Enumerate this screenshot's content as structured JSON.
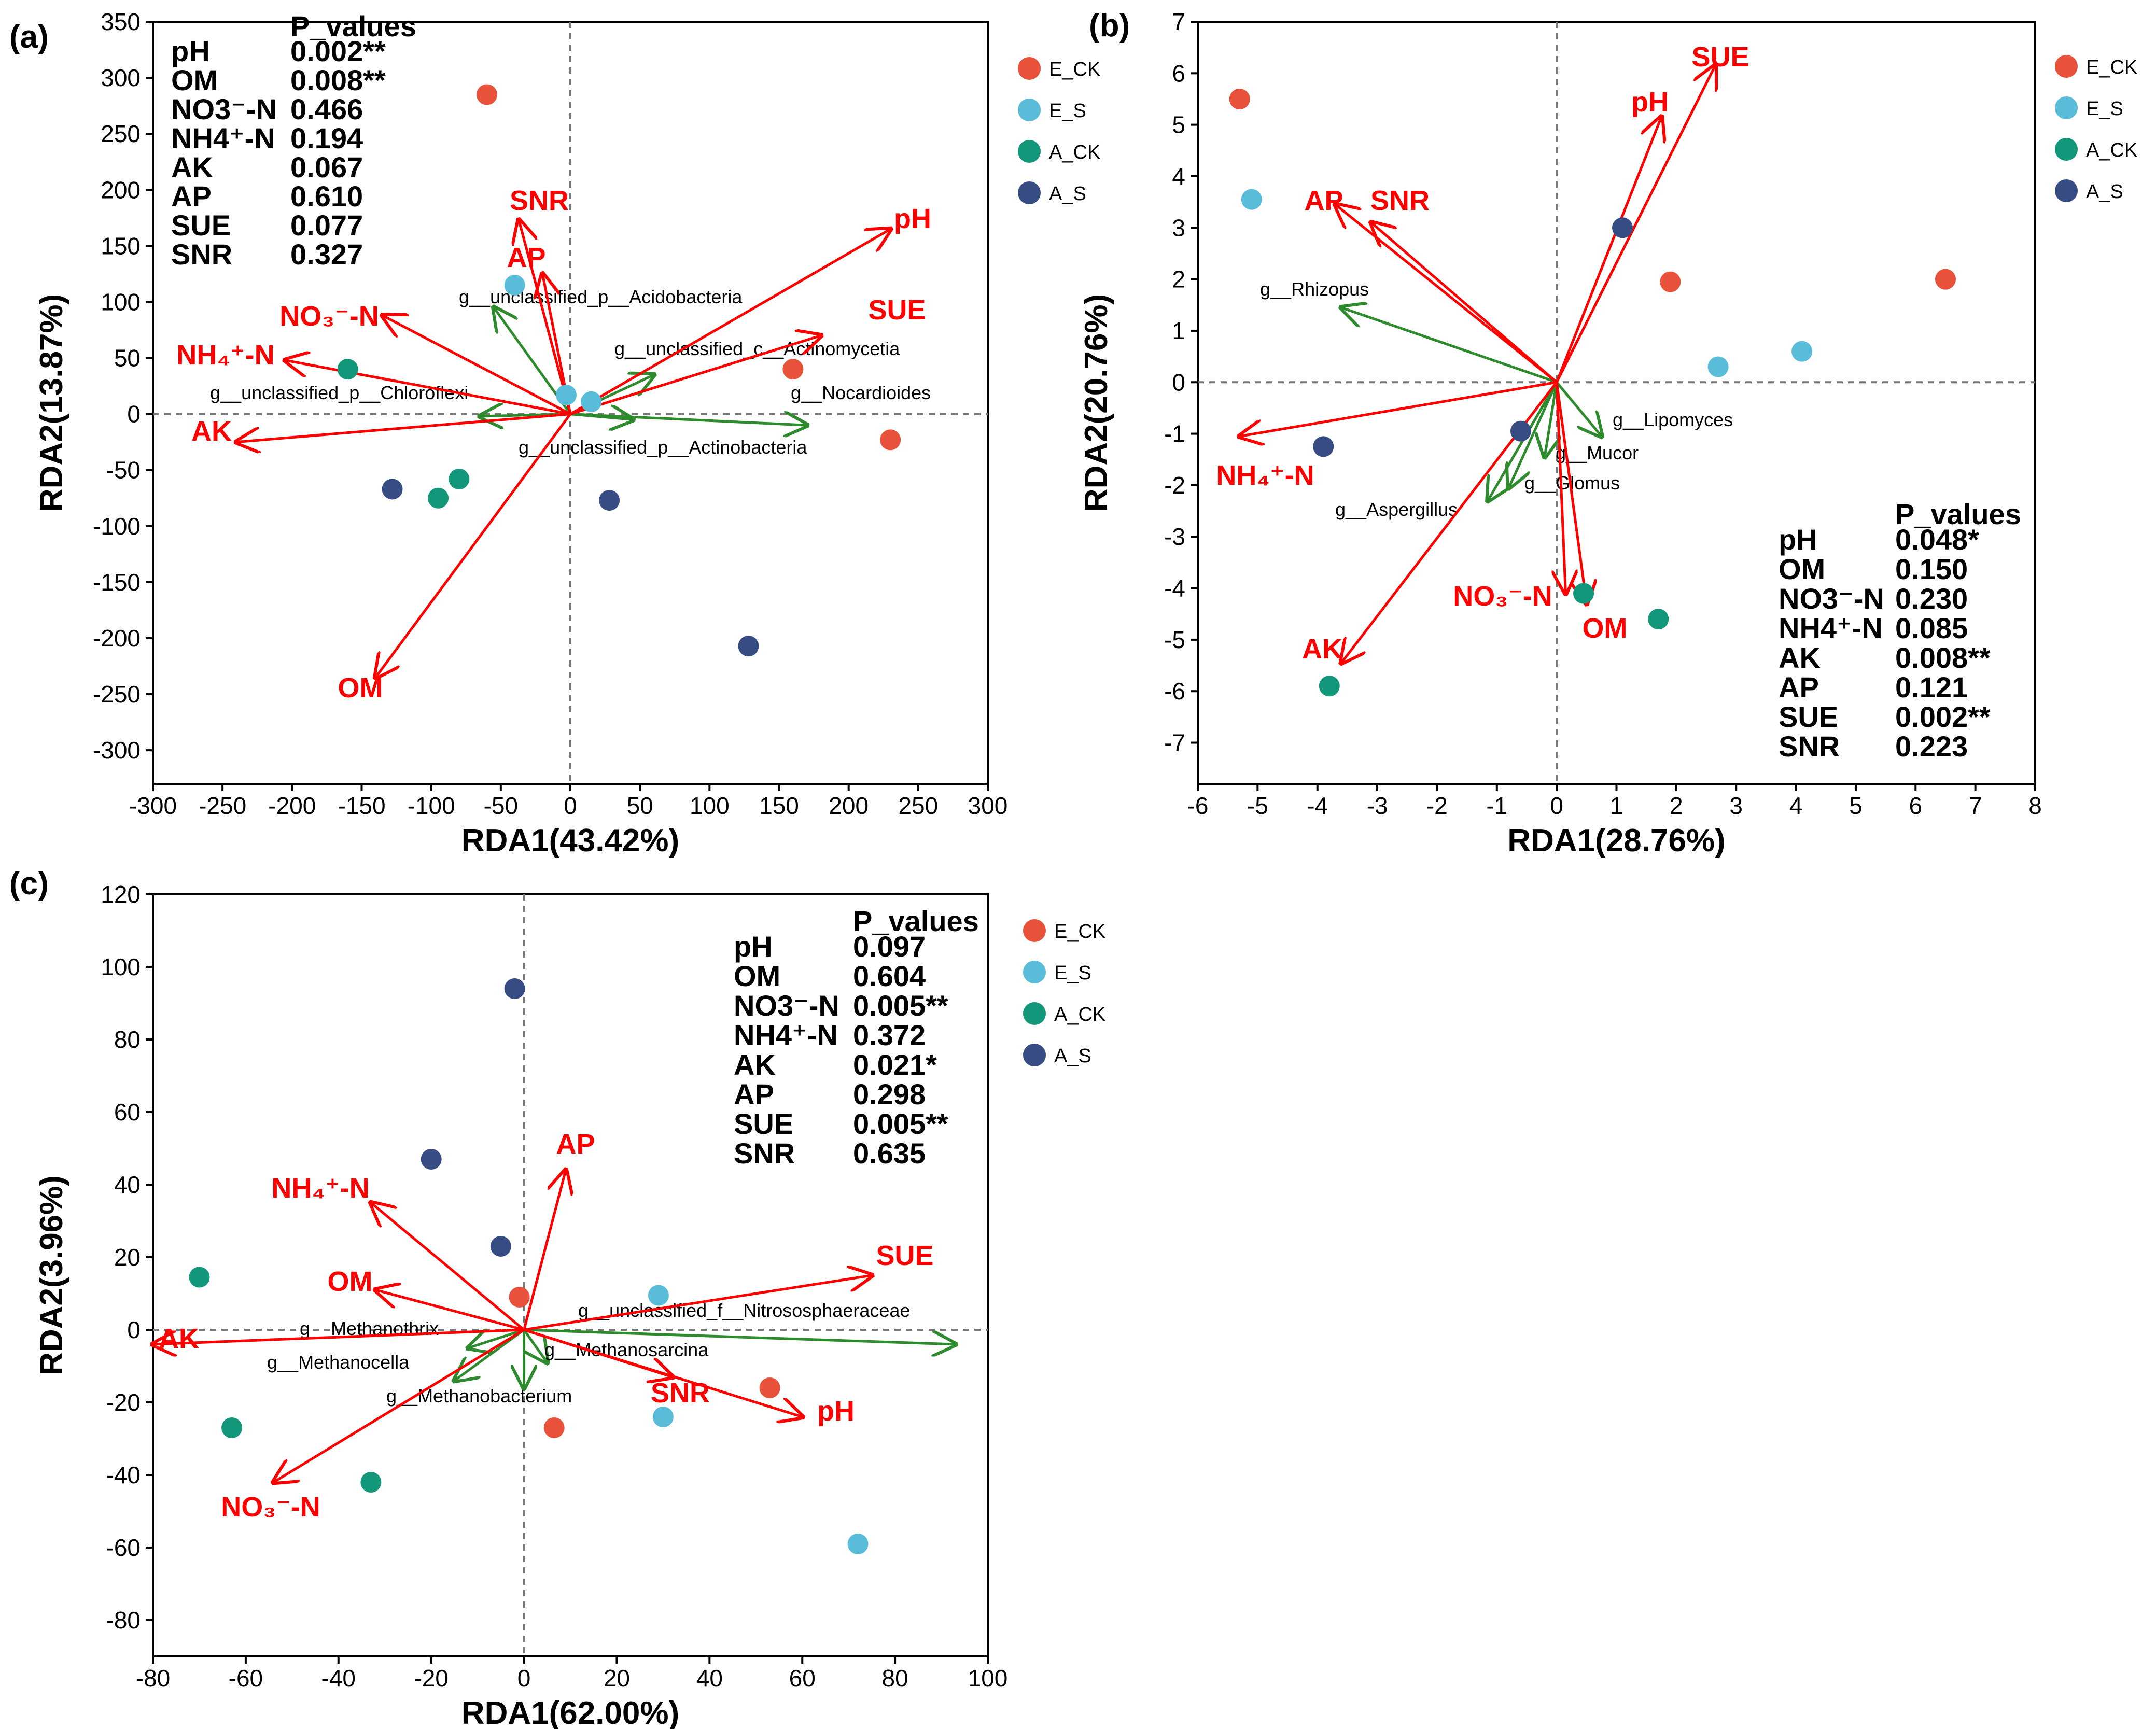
{
  "colors": {
    "E_CK": "#e8523a",
    "E_S": "#59bcd8",
    "A_CK": "#12977a",
    "A_S": "#384c84",
    "env_arrow": "#ff0000",
    "taxa_arrow": "#2d8a2d"
  },
  "chart_data": [
    {
      "id": "a",
      "type": "scatter",
      "panel_label": "(a)",
      "xlabel": "RDA1(43.42%)",
      "ylabel": "RDA2(13.87%)",
      "xlim": [
        -300,
        300
      ],
      "ylim": [
        -330,
        350
      ],
      "xticks": [
        -300,
        -250,
        -200,
        -150,
        -100,
        -50,
        0,
        50,
        100,
        150,
        200,
        250,
        300
      ],
      "yticks": [
        -300,
        -250,
        -200,
        -150,
        -100,
        -50,
        0,
        50,
        100,
        150,
        200,
        250,
        300,
        350
      ],
      "legend": [
        "E_CK",
        "E_S",
        "A_CK",
        "A_S"
      ],
      "legend_position": "right",
      "pvalues_title": "P_values",
      "pvalues_position": "top-left",
      "pvalues": [
        {
          "name": "pH",
          "value": "0.002**"
        },
        {
          "name": "OM",
          "value": "0.008**"
        },
        {
          "name": "NO3⁻-N",
          "value": "0.466"
        },
        {
          "name": "NH4⁺-N",
          "value": "0.194"
        },
        {
          "name": "AK",
          "value": "0.067"
        },
        {
          "name": "AP",
          "value": "0.610"
        },
        {
          "name": "SUE",
          "value": "0.077"
        },
        {
          "name": "SNR",
          "value": "0.327"
        }
      ],
      "points": [
        {
          "group": "E_CK",
          "x": -60,
          "y": 285
        },
        {
          "group": "E_CK",
          "x": 160,
          "y": 40
        },
        {
          "group": "E_CK",
          "x": 230,
          "y": -23
        },
        {
          "group": "E_S",
          "x": -40,
          "y": 115
        },
        {
          "group": "E_S",
          "x": -3,
          "y": 17
        },
        {
          "group": "E_S",
          "x": 15,
          "y": 11
        },
        {
          "group": "A_CK",
          "x": -160,
          "y": 40
        },
        {
          "group": "A_CK",
          "x": -95,
          "y": -75
        },
        {
          "group": "A_CK",
          "x": -80,
          "y": -58
        },
        {
          "group": "A_S",
          "x": -128,
          "y": -67
        },
        {
          "group": "A_S",
          "x": 28,
          "y": -77
        },
        {
          "group": "A_S",
          "x": 128,
          "y": -207
        }
      ],
      "env_arrows": [
        {
          "label": "pH",
          "x": 230,
          "y": 165
        },
        {
          "label": "SUE",
          "x": 180,
          "y": 70
        },
        {
          "label": "SNR",
          "x": -37,
          "y": 173
        },
        {
          "label": "AP",
          "x": -20,
          "y": 125
        },
        {
          "label": "NO₃⁻-N",
          "x": -135,
          "y": 88
        },
        {
          "label": "NH₄⁺-N",
          "x": -205,
          "y": 48
        },
        {
          "label": "AK",
          "x": -240,
          "y": -25
        },
        {
          "label": "OM",
          "x": -140,
          "y": -235
        }
      ],
      "taxa_arrows": [
        {
          "label": "g__unclassified_p__Acidobacteria",
          "x": -55,
          "y": 95
        },
        {
          "label": "g__unclassified_c__Actinomycetia",
          "x": 60,
          "y": 35
        },
        {
          "label": "g__unclassified_p__Chloroflexi",
          "x": -65,
          "y": -2
        },
        {
          "label": "g__Nocardioides",
          "x": 170,
          "y": -10
        },
        {
          "label": "g__unclassified_p__Actinobacteria",
          "x": 45,
          "y": -5
        }
      ]
    },
    {
      "id": "b",
      "type": "scatter",
      "panel_label": "(b)",
      "xlabel": "RDA1(28.76%)",
      "ylabel": "RDA2(20.76%)",
      "xlim": [
        -6,
        8
      ],
      "ylim": [
        -7.8,
        7
      ],
      "xticks": [
        -6,
        -5,
        -4,
        -3,
        -2,
        -1,
        0,
        1,
        2,
        3,
        4,
        5,
        6,
        7,
        8
      ],
      "yticks": [
        -7,
        -6,
        -5,
        -4,
        -3,
        -2,
        -1,
        0,
        1,
        2,
        3,
        4,
        5,
        6,
        7
      ],
      "legend": [
        "E_CK",
        "E_S",
        "A_CK",
        "A_S"
      ],
      "legend_position": "right",
      "pvalues_title": "P_values",
      "pvalues_position": "bottom-right",
      "pvalues": [
        {
          "name": "pH",
          "value": "0.048*"
        },
        {
          "name": "OM",
          "value": "0.150"
        },
        {
          "name": "NO3⁻-N",
          "value": "0.230"
        },
        {
          "name": "NH4⁺-N",
          "value": "0.085"
        },
        {
          "name": "AK",
          "value": "0.008**"
        },
        {
          "name": "AP",
          "value": "0.121"
        },
        {
          "name": "SUE",
          "value": "0.002**"
        },
        {
          "name": "SNR",
          "value": "0.223"
        }
      ],
      "points": [
        {
          "group": "E_CK",
          "x": -5.3,
          "y": 5.5
        },
        {
          "group": "E_CK",
          "x": 1.9,
          "y": 1.95
        },
        {
          "group": "E_CK",
          "x": 6.5,
          "y": 2.0
        },
        {
          "group": "E_S",
          "x": -5.1,
          "y": 3.55
        },
        {
          "group": "E_S",
          "x": 2.7,
          "y": 0.3
        },
        {
          "group": "E_S",
          "x": 4.1,
          "y": 0.6
        },
        {
          "group": "A_CK",
          "x": -3.8,
          "y": -5.9
        },
        {
          "group": "A_CK",
          "x": 0.45,
          "y": -4.1
        },
        {
          "group": "A_CK",
          "x": 1.7,
          "y": -4.6
        },
        {
          "group": "A_S",
          "x": -3.9,
          "y": -1.25
        },
        {
          "group": "A_S",
          "x": -0.6,
          "y": -0.95
        },
        {
          "group": "A_S",
          "x": 1.1,
          "y": 3.0
        }
      ],
      "env_arrows": [
        {
          "label": "SUE",
          "x": 2.65,
          "y": 6.15
        },
        {
          "label": "pH",
          "x": 1.75,
          "y": 5.15
        },
        {
          "label": "AP",
          "x": -3.7,
          "y": 3.45
        },
        {
          "label": "SNR",
          "x": -3.1,
          "y": 3.1
        },
        {
          "label": "NH₄⁺-N",
          "x": -5.3,
          "y": -1.05
        },
        {
          "label": "AK",
          "x": -3.6,
          "y": -5.45
        },
        {
          "label": "NO₃⁻-N",
          "x": 0.15,
          "y": -4.1
        },
        {
          "label": "OM",
          "x": 0.5,
          "y": -4.3
        }
      ],
      "taxa_arrows": [
        {
          "label": "g__Rhizopus",
          "x": -3.6,
          "y": 1.45
        },
        {
          "label": "g__Lipomyces",
          "x": 0.75,
          "y": -1.05
        },
        {
          "label": "g__Mucor",
          "x": -0.2,
          "y": -1.45
        },
        {
          "label": "g__Glomus",
          "x": -0.8,
          "y": -2.05
        },
        {
          "label": "g__Aspergillus",
          "x": -1.15,
          "y": -2.3
        }
      ]
    },
    {
      "id": "c",
      "type": "scatter",
      "panel_label": "(c)",
      "xlabel": "RDA1(62.00%)",
      "ylabel": "RDA2(3.96%)",
      "xlim": [
        -80,
        100
      ],
      "ylim": [
        -90,
        120
      ],
      "xticks": [
        -80,
        -60,
        -40,
        -20,
        0,
        20,
        40,
        60,
        80,
        100
      ],
      "yticks": [
        -80,
        -60,
        -40,
        -20,
        0,
        20,
        40,
        60,
        80,
        100,
        120
      ],
      "legend": [
        "E_CK",
        "E_S",
        "A_CK",
        "A_S"
      ],
      "legend_position": "right",
      "pvalues_title": "P_values",
      "pvalues_position": "top-right",
      "pvalues": [
        {
          "name": "pH",
          "value": "0.097"
        },
        {
          "name": "OM",
          "value": "0.604"
        },
        {
          "name": "NO3⁻-N",
          "value": "0.005**"
        },
        {
          "name": "NH4⁺-N",
          "value": "0.372"
        },
        {
          "name": "AK",
          "value": "0.021*"
        },
        {
          "name": "AP",
          "value": "0.298"
        },
        {
          "name": "SUE",
          "value": "0.005**"
        },
        {
          "name": "SNR",
          "value": "0.635"
        }
      ],
      "points": [
        {
          "group": "E_CK",
          "x": -1,
          "y": 9
        },
        {
          "group": "E_CK",
          "x": 6.5,
          "y": -27
        },
        {
          "group": "E_CK",
          "x": 53,
          "y": -16
        },
        {
          "group": "E_S",
          "x": 29,
          "y": 9.5
        },
        {
          "group": "E_S",
          "x": 30,
          "y": -24
        },
        {
          "group": "E_S",
          "x": 72,
          "y": -59
        },
        {
          "group": "A_CK",
          "x": -70,
          "y": 14.5
        },
        {
          "group": "A_CK",
          "x": -63,
          "y": -27
        },
        {
          "group": "A_CK",
          "x": -33,
          "y": -42
        },
        {
          "group": "A_S",
          "x": -2,
          "y": 94
        },
        {
          "group": "A_S",
          "x": -20,
          "y": 47
        },
        {
          "group": "A_S",
          "x": -5,
          "y": 23
        }
      ],
      "env_arrows": [
        {
          "label": "AP",
          "x": 9,
          "y": 44
        },
        {
          "label": "NH₄⁺-N",
          "x": -33,
          "y": 35
        },
        {
          "label": "SUE",
          "x": 75,
          "y": 15
        },
        {
          "label": "OM",
          "x": -32,
          "y": 11
        },
        {
          "label": "AK",
          "x": -80,
          "y": -4
        },
        {
          "label": "SNR",
          "x": 32,
          "y": -13
        },
        {
          "label": "pH",
          "x": 60,
          "y": -24
        },
        {
          "label": "NO₃⁻-N",
          "x": -54,
          "y": -42
        }
      ],
      "taxa_arrows": [
        {
          "label": "g__unclassified_f__Nitrososphaeraceae",
          "x": 93,
          "y": -4
        },
        {
          "label": "g__Methanothrix",
          "x": -12,
          "y": -5
        },
        {
          "label": "g__Methanocella",
          "x": -15,
          "y": -14
        },
        {
          "label": "g__Methanosarcina",
          "x": 5,
          "y": -9
        },
        {
          "label": "g__Methanobacterium",
          "x": 0,
          "y": -16
        }
      ]
    }
  ]
}
